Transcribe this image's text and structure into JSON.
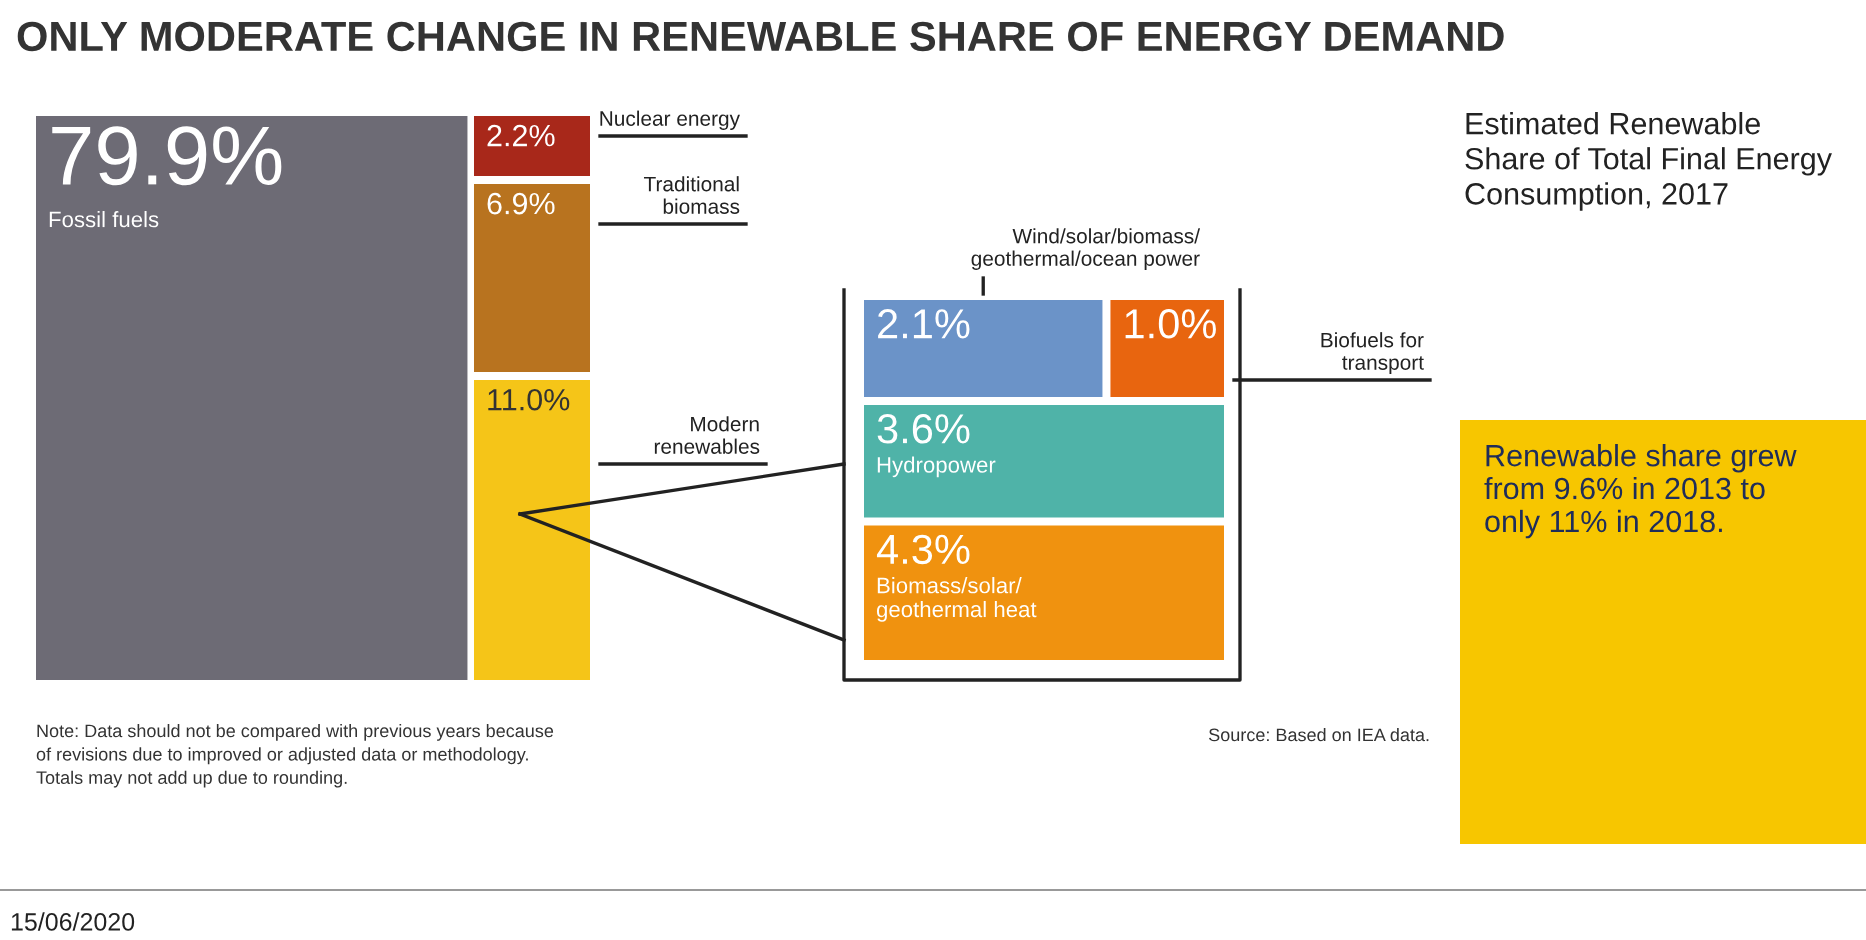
{
  "chart_data": {
    "type": "other",
    "title": "ONLY MODERATE CHANGE IN RENEWABLE SHARE OF ENERGY DEMAND",
    "subtitle": "Estimated Renewable\nShare of Total Final Energy\nConsumption, 2017",
    "categories": [
      "Fossil fuels",
      "Nuclear energy",
      "Traditional\nbiomass",
      "Modern\nrenewables",
      "Wind/solar/biomass/\ngeothermal/ocean power",
      "Biofuels for\ntransport",
      "Hydropower",
      "Biomass/solar/\ngeothermal heat"
    ],
    "values": [
      79.9,
      2.2,
      6.9,
      11.0,
      2.1,
      1.0,
      3.6,
      4.3
    ],
    "value_labels": [
      "79.9%",
      "2.2%",
      "6.9%",
      "11.0%",
      "2.1%",
      "1.0%",
      "3.6%",
      "4.3%"
    ],
    "colors": [
      "#6d6b75",
      "#a8281a",
      "#b8731f",
      "#f5c518",
      "#6b93c8",
      "#e8650f",
      "#4fb3a8",
      "#f0920f"
    ],
    "annotations": [
      "Renewable share grew\nfrom 9.6% in 2013 to\nonly 11% in 2018.",
      "Note: Data should not be compared with previous years because\nof revisions due to improved or adjusted data or methodology.\nTotals may not add up due to rounding.",
      "Source: Based on IEA data.",
      "15/06/2020"
    ]
  }
}
